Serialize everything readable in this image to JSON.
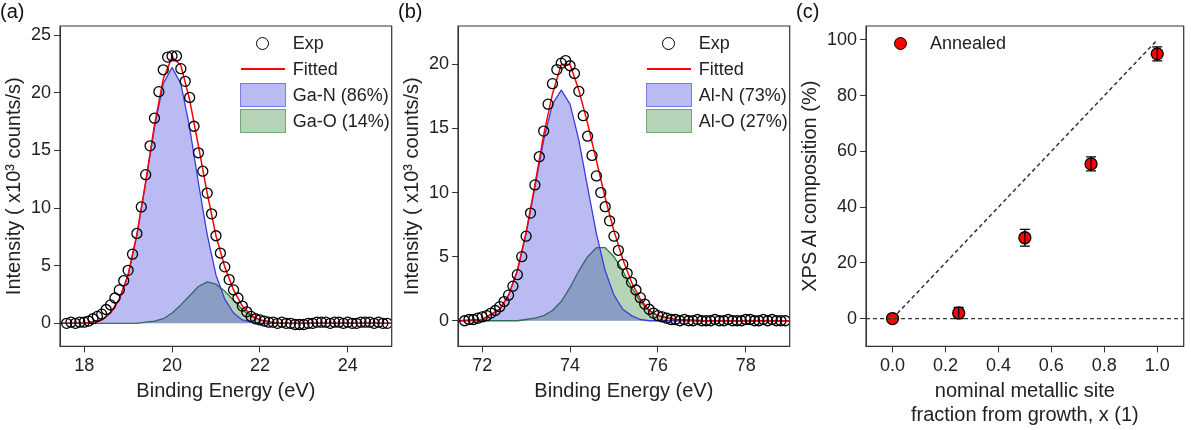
{
  "chart_data": [
    {
      "type": "line",
      "title": "(a)",
      "xlabel": "Binding Energy (eV)",
      "ylabel": "Intensity ( x10³ counts/s)",
      "xlim": [
        17.45,
        25
      ],
      "ylim": [
        -2,
        25.8
      ],
      "xticks": [
        18,
        20,
        22,
        24
      ],
      "yticks": [
        0,
        5,
        10,
        15,
        20,
        25
      ],
      "grid": false,
      "legend": "top right",
      "series": [
        {
          "name": "Exp",
          "type": "scatter",
          "marker": "circle",
          "color": "#000000",
          "x": [
            17.6,
            17.7,
            17.8,
            17.9,
            18.0,
            18.1,
            18.2,
            18.3,
            18.4,
            18.5,
            18.6,
            18.7,
            18.8,
            18.9,
            19.0,
            19.1,
            19.2,
            19.3,
            19.4,
            19.5,
            19.6,
            19.7,
            19.8,
            19.9,
            20.0,
            20.1,
            20.2,
            20.3,
            20.4,
            20.5,
            20.6,
            20.7,
            20.8,
            20.9,
            21.0,
            21.1,
            21.2,
            21.3,
            21.4,
            21.5,
            21.6,
            21.7,
            21.8,
            21.9,
            22.0,
            22.1,
            22.2,
            22.3,
            22.4,
            22.5,
            22.6,
            22.7,
            22.8,
            22.9,
            23.0,
            23.1,
            23.2,
            23.3,
            23.4,
            23.5,
            23.6,
            23.7,
            23.8,
            23.9,
            24.0,
            24.1,
            24.2,
            24.3,
            24.4,
            24.5,
            24.6,
            24.7,
            24.8,
            24.9
          ],
          "values": [
            0.0,
            0.1,
            0.0,
            0.1,
            0.1,
            0.2,
            0.4,
            0.6,
            0.8,
            1.2,
            1.6,
            2.2,
            2.9,
            3.7,
            4.6,
            6.0,
            7.8,
            10.1,
            12.9,
            15.4,
            17.8,
            20.1,
            22.0,
            23.1,
            23.2,
            23.2,
            22.1,
            21.0,
            19.6,
            17.1,
            14.8,
            13.2,
            11.3,
            9.5,
            7.6,
            6.1,
            4.9,
            3.8,
            2.9,
            2.2,
            1.5,
            1.0,
            0.6,
            0.4,
            0.3,
            0.2,
            0.1,
            0.1,
            0.0,
            0.1,
            0.0,
            0.0,
            -0.1,
            -0.1,
            -0.1,
            0.0,
            0.0,
            0.1,
            0.1,
            0.1,
            0.0,
            0.1,
            0.1,
            0.0,
            0.1,
            0.0,
            0.0,
            0.1,
            0.1,
            0.1,
            0.0,
            0.1,
            0.0,
            0.0
          ]
        },
        {
          "name": "Fitted",
          "color": "#ff0000",
          "x": [
            17.5,
            18.0,
            18.4,
            18.6,
            18.8,
            19.0,
            19.2,
            19.4,
            19.6,
            19.8,
            20.0,
            20.2,
            20.4,
            20.6,
            20.8,
            21.0,
            21.2,
            21.4,
            21.6,
            21.8,
            22.0,
            22.4,
            23.0,
            25.0
          ],
          "values": [
            0,
            0,
            0.3,
            0.9,
            2.1,
            4.2,
            7.7,
            12.3,
            17.2,
            21.2,
            23.1,
            22.4,
            19.4,
            15.4,
            11.3,
            7.6,
            4.9,
            2.9,
            1.5,
            0.7,
            0.3,
            0,
            0,
            0
          ]
        },
        {
          "name": "Ga-N (86%)",
          "type": "area",
          "color": "#3c3cdc",
          "x": [
            17.5,
            18.0,
            18.4,
            18.6,
            18.8,
            19.0,
            19.2,
            19.4,
            19.6,
            19.8,
            20.0,
            20.2,
            20.4,
            20.6,
            20.8,
            21.0,
            21.2,
            21.4,
            21.6,
            21.8,
            22.0,
            22.4,
            23.0,
            25.0
          ],
          "values": [
            0,
            0,
            0.3,
            0.9,
            2.1,
            4.2,
            7.7,
            12.2,
            17.0,
            20.8,
            22.2,
            20.8,
            17.0,
            12.2,
            7.7,
            4.2,
            2.1,
            0.9,
            0.3,
            0.1,
            0,
            0,
            0,
            0
          ]
        },
        {
          "name": "Ga-O (14%)",
          "type": "area",
          "color": "#2e7d32",
          "x": [
            17.5,
            18.0,
            18.4,
            18.6,
            18.8,
            19.0,
            19.2,
            19.4,
            19.6,
            19.8,
            20.0,
            20.2,
            20.4,
            20.6,
            20.8,
            21.0,
            21.2,
            21.4,
            21.6,
            21.8,
            22.0,
            22.4,
            23.0,
            25.0
          ],
          "values": [
            0,
            0,
            0,
            0,
            0,
            0,
            0,
            0.1,
            0.2,
            0.4,
            0.9,
            1.6,
            2.4,
            3.2,
            3.6,
            3.4,
            2.8,
            2.0,
            1.2,
            0.6,
            0.3,
            0,
            0,
            0
          ]
        }
      ]
    },
    {
      "type": "line",
      "title": "(b)",
      "xlabel": "Binding Energy (eV)",
      "ylabel": "Intensity ( x10³ counts/s)",
      "xlim": [
        71.45,
        79
      ],
      "ylim": [
        -2,
        23
      ],
      "xticks": [
        72,
        74,
        76,
        78
      ],
      "yticks": [
        0,
        5,
        10,
        15,
        20
      ],
      "grid": false,
      "legend": "top right",
      "series": [
        {
          "name": "Exp",
          "type": "scatter",
          "marker": "circle",
          "color": "#000000",
          "x": [
            71.6,
            71.7,
            71.8,
            71.9,
            72.0,
            72.1,
            72.2,
            72.3,
            72.4,
            72.5,
            72.6,
            72.7,
            72.8,
            72.9,
            73.0,
            73.1,
            73.2,
            73.3,
            73.4,
            73.5,
            73.6,
            73.7,
            73.8,
            73.9,
            74.0,
            74.1,
            74.2,
            74.3,
            74.4,
            74.5,
            74.6,
            74.7,
            74.8,
            74.9,
            75.0,
            75.1,
            75.2,
            75.3,
            75.4,
            75.5,
            75.6,
            75.7,
            75.8,
            75.9,
            76.0,
            76.1,
            76.2,
            76.3,
            76.4,
            76.5,
            76.6,
            76.7,
            76.8,
            76.9,
            77.0,
            77.1,
            77.2,
            77.3,
            77.4,
            77.5,
            77.6,
            77.7,
            77.8,
            77.9,
            78.0,
            78.1,
            78.2,
            78.3,
            78.4,
            78.5,
            78.6,
            78.7,
            78.8,
            78.9
          ],
          "values": [
            0.0,
            0.1,
            0.1,
            0.2,
            0.3,
            0.4,
            0.6,
            0.8,
            1.1,
            1.5,
            2.0,
            2.7,
            3.6,
            5.0,
            6.6,
            8.4,
            10.6,
            12.8,
            14.8,
            16.9,
            18.5,
            19.6,
            20.1,
            20.3,
            19.9,
            19.3,
            17.9,
            16.0,
            14.4,
            12.9,
            11.3,
            10.0,
            8.9,
            7.8,
            6.6,
            5.5,
            4.4,
            3.7,
            3.0,
            2.4,
            1.8,
            1.3,
            0.9,
            0.6,
            0.4,
            0.3,
            0.2,
            0.1,
            0.1,
            0.0,
            0.1,
            0.0,
            0.0,
            0.1,
            0.0,
            0.0,
            0.0,
            0.1,
            0.0,
            0.0,
            0.1,
            0.0,
            0.0,
            0.0,
            0.1,
            0.1,
            0.0,
            0.0,
            0.1,
            0.0,
            0.1,
            0.0,
            0.0,
            0.0
          ]
        },
        {
          "name": "Fitted",
          "color": "#ff0000",
          "x": [
            71.5,
            72.0,
            72.4,
            72.6,
            72.8,
            73.0,
            73.2,
            73.4,
            73.6,
            73.8,
            74.0,
            74.2,
            74.4,
            74.6,
            74.8,
            75.0,
            75.2,
            75.4,
            75.6,
            75.8,
            76.0,
            76.4,
            77.0,
            79.0
          ],
          "values": [
            0,
            0.1,
            0.9,
            2.0,
            3.9,
            6.9,
            10.6,
            14.5,
            17.7,
            20.0,
            20.0,
            18.0,
            15.4,
            12.5,
            9.6,
            7.0,
            4.8,
            3.0,
            1.7,
            0.8,
            0.4,
            0.1,
            0,
            0
          ]
        },
        {
          "name": "Al-N (73%)",
          "type": "area",
          "color": "#3c3cdc",
          "x": [
            71.5,
            72.0,
            72.4,
            72.6,
            72.8,
            73.0,
            73.2,
            73.4,
            73.6,
            73.8,
            74.0,
            74.2,
            74.4,
            74.6,
            74.8,
            75.0,
            75.2,
            75.4,
            75.6,
            75.8,
            76.0,
            76.4,
            77.0,
            79.0
          ],
          "values": [
            0,
            0.1,
            0.9,
            2.0,
            3.9,
            6.8,
            10.4,
            14.1,
            16.9,
            18.0,
            16.9,
            14.1,
            10.4,
            6.8,
            3.9,
            2.0,
            0.9,
            0.4,
            0.1,
            0,
            0,
            0,
            0,
            0
          ]
        },
        {
          "name": "Al-O (27%)",
          "type": "area",
          "color": "#2e7d32",
          "x": [
            71.5,
            72.0,
            72.4,
            72.6,
            72.8,
            73.0,
            73.2,
            73.4,
            73.6,
            73.8,
            74.0,
            74.2,
            74.4,
            74.6,
            74.8,
            75.0,
            75.2,
            75.4,
            75.6,
            75.8,
            76.0,
            76.4,
            77.0,
            79.0
          ],
          "values": [
            0,
            0,
            0,
            0,
            0,
            0.1,
            0.2,
            0.4,
            0.8,
            1.5,
            2.6,
            3.9,
            5.0,
            5.7,
            5.7,
            5.0,
            3.9,
            2.6,
            1.5,
            0.8,
            0.4,
            0.1,
            0,
            0
          ]
        }
      ]
    },
    {
      "type": "scatter",
      "title": "(c)",
      "xlabel": "nominal metallic site fraction from growth, x (1)",
      "ylabel": "XPS Al composition (%)",
      "xlim": [
        -0.1,
        1.1
      ],
      "ylim": [
        -10,
        105
      ],
      "xticks": [
        {
          "value": 0,
          "label": "0.0"
        },
        0.2,
        0.4,
        0.6,
        0.8,
        {
          "value": 1,
          "label": "1.0"
        }
      ],
      "yticks": [
        0,
        20,
        40,
        60,
        80,
        100
      ],
      "grid": false,
      "legend": "top left",
      "ref_lines": [
        {
          "axis": "y",
          "value": 0,
          "line_style": "dashed",
          "color": "#333333"
        }
      ],
      "series": [
        {
          "name": "Annealed",
          "marker": "circle",
          "color": "#ff0000",
          "x": [
            0,
            0.25,
            0.5,
            0.75,
            1
          ],
          "values": [
            0,
            2,
            29,
            55.5,
            95
          ],
          "errors": [
            null,
            2,
            3,
            2.5,
            2.5
          ]
        },
        {
          "type": "line",
          "line_style": "dashed",
          "color": "#333333",
          "x": [
            0,
            1
          ],
          "values": [
            0,
            100
          ]
        }
      ]
    }
  ]
}
